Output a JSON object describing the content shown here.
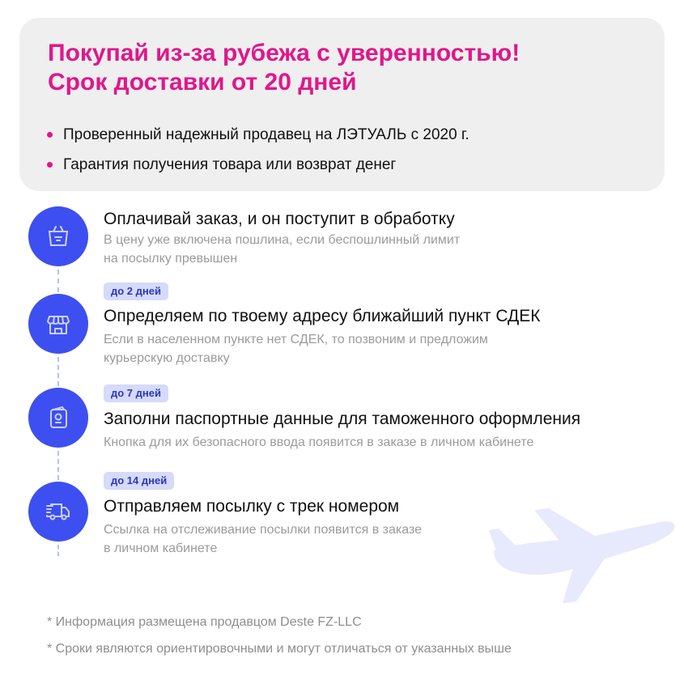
{
  "header": {
    "title_line1": "Покупай из-за рубежа с уверенностью!",
    "title_line2": "Срок доставки от 20 дней",
    "bullets": [
      "Проверенный надежный продавец на ЛЭТУАЛЬ с 2020 г.",
      "Гарантия получения товара или возврат денег"
    ]
  },
  "steps": [
    {
      "icon": "basket-icon",
      "title": "Оплачивай заказ, и он поступит в обработку",
      "sub_line1": "В цену уже включена пошлина, если беспошлинный лимит",
      "sub_line2": "на посылку превышен"
    },
    {
      "badge": "до 2 дней",
      "icon": "store-icon",
      "title": "Определяем по твоему адресу ближайший пункт СДЕК",
      "sub_line1": "Если в населенном пункте нет СДЕК, то позвоним и предложим",
      "sub_line2": "курьерскую доставку"
    },
    {
      "badge": "до 7 дней",
      "icon": "passport-icon",
      "title": "Заполни паспортные данные для таможенного оформления",
      "sub_line1": "Кнопка для их безопасного ввода появится в заказе в личном кабинете"
    },
    {
      "badge": "до 14 дней",
      "icon": "delivery-truck-icon",
      "title": "Отправляем посылку с трек номером",
      "sub_line1": "Ссылка на отслеживание посылки появится в заказе",
      "sub_line2": "в личном кабинете"
    }
  ],
  "footnotes": [
    "* Информация размещена продавцом Deste FZ-LLC",
    "* Сроки являются ориентировочными и могут отличаться от указанных выше"
  ],
  "colors": {
    "accent_pink": "#e0178c",
    "accent_blue": "#3d4ff0",
    "badge_bg": "#d6dafb"
  }
}
